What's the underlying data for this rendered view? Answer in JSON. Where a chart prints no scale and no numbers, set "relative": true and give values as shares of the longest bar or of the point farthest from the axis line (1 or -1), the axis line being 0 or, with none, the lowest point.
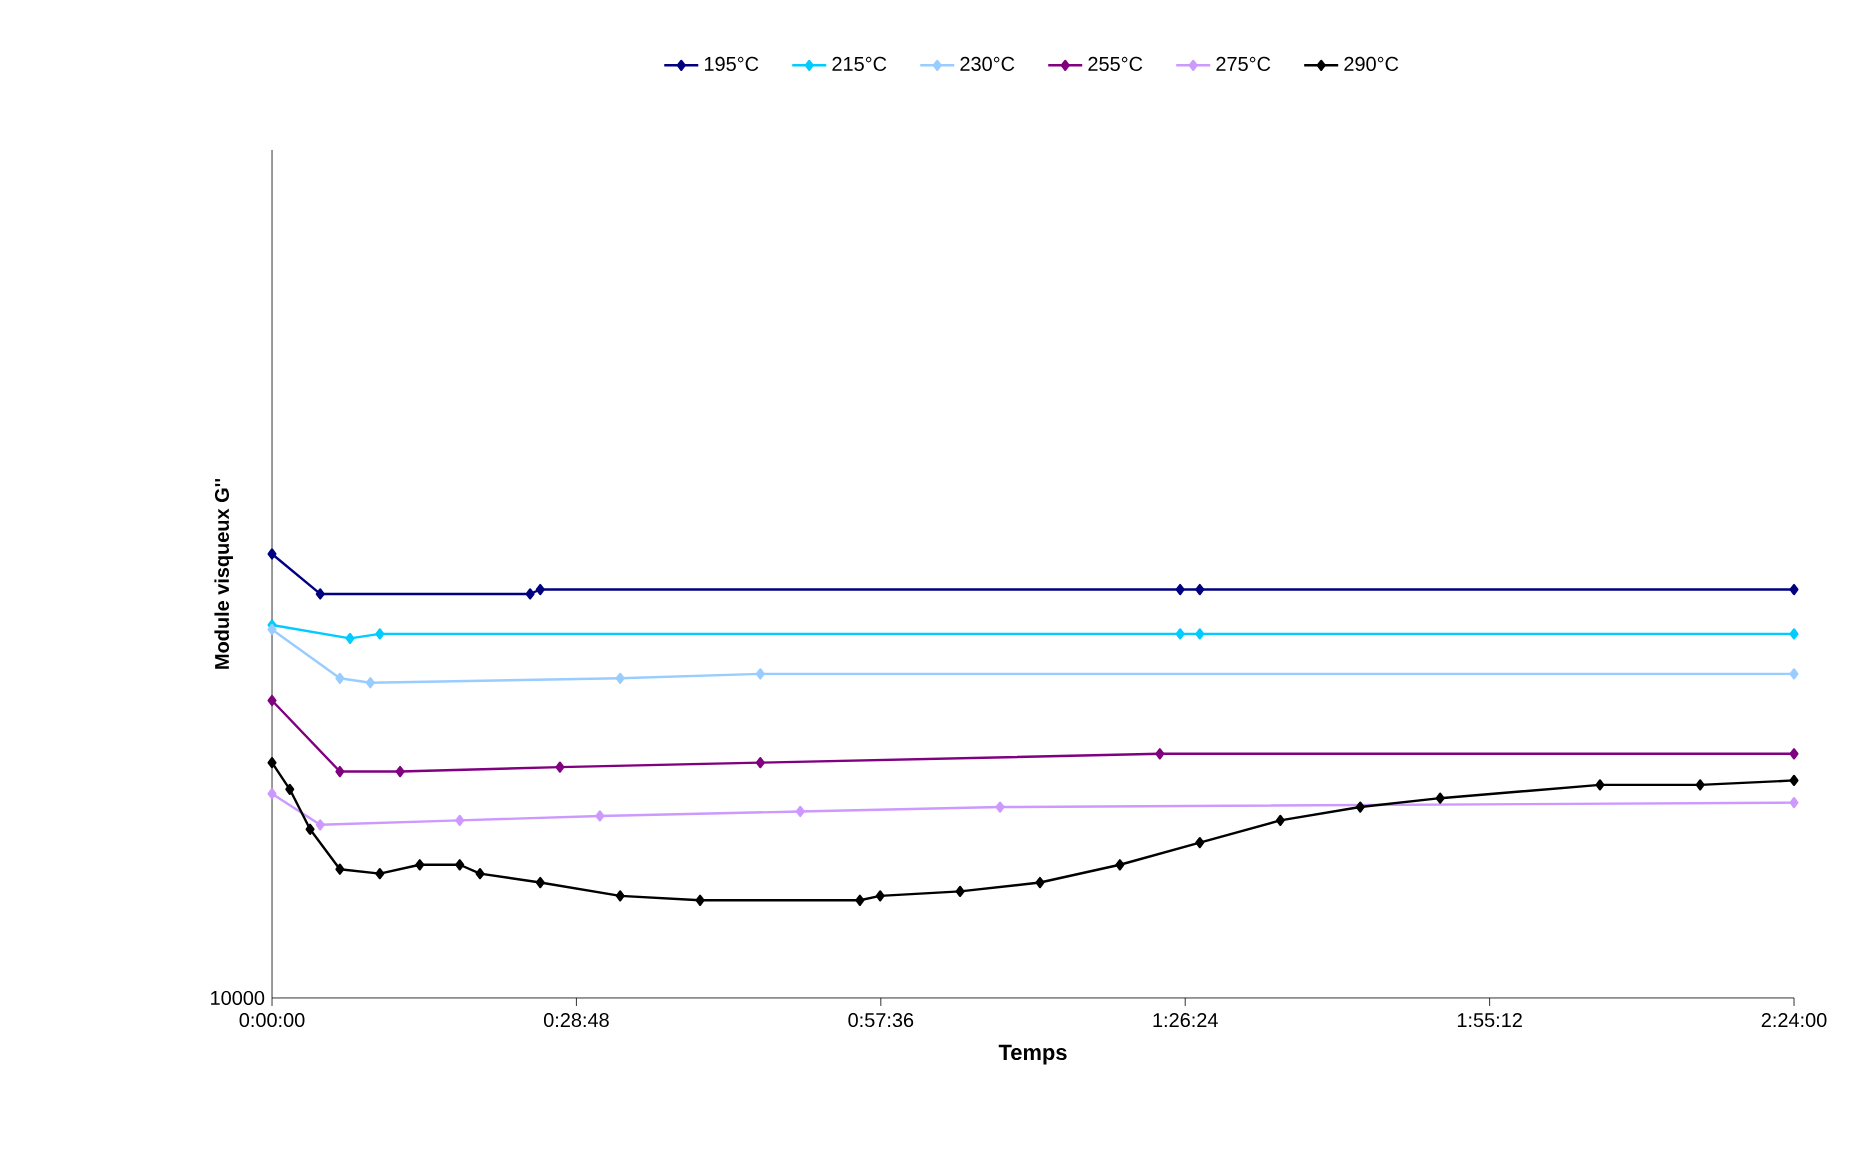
{
  "chart_data": {
    "type": "line",
    "relative": true,
    "xlabel": "Temps",
    "ylabel": "Module visqueux G''",
    "annotations": [
      "10000"
    ],
    "xlim": [
      0,
      2.4
    ],
    "xticks": [
      {
        "value": 0,
        "label": "0:00:00"
      },
      {
        "value": 0.48,
        "label": "0:28:48"
      },
      {
        "value": 0.96,
        "label": "0:57:36"
      },
      {
        "value": 1.44,
        "label": "1:26:24"
      },
      {
        "value": 1.92,
        "label": "1:55:12"
      },
      {
        "value": 2.4,
        "label": "2:24:00"
      }
    ],
    "legend": "top",
    "marker": "diamond",
    "grid": false,
    "series": [
      {
        "name": "195°C",
        "color": "#000080",
        "x": [
          0,
          0.076,
          0.407,
          0.423,
          1.432,
          1.463,
          2.4
        ],
        "values": [
          1.0,
          0.91,
          0.91,
          0.92,
          0.92,
          0.92,
          0.92
        ]
      },
      {
        "name": "215°C",
        "color": "#00ccff",
        "x": [
          0,
          0.123,
          0.17,
          1.432,
          1.463,
          2.4
        ],
        "values": [
          0.84,
          0.81,
          0.82,
          0.82,
          0.82,
          0.82
        ]
      },
      {
        "name": "230°C",
        "color": "#99ccff",
        "x": [
          0,
          0.107,
          0.155,
          0.549,
          0.77,
          2.4
        ],
        "values": [
          0.83,
          0.72,
          0.71,
          0.72,
          0.73,
          0.73
        ]
      },
      {
        "name": "255°C",
        "color": "#800080",
        "x": [
          0,
          0.107,
          0.202,
          0.454,
          0.77,
          1.4,
          2.4
        ],
        "values": [
          0.67,
          0.51,
          0.51,
          0.52,
          0.53,
          0.55,
          0.55
        ]
      },
      {
        "name": "275°C",
        "color": "#cc99ff",
        "x": [
          0,
          0.076,
          0.296,
          0.517,
          0.833,
          1.148,
          2.4
        ],
        "values": [
          0.46,
          0.39,
          0.4,
          0.41,
          0.42,
          0.43,
          0.44
        ]
      },
      {
        "name": "290°C",
        "color": "#000000",
        "x": [
          0,
          0.028,
          0.06,
          0.107,
          0.17,
          0.233,
          0.296,
          0.328,
          0.423,
          0.549,
          0.675,
          0.927,
          0.959,
          1.085,
          1.211,
          1.337,
          1.463,
          1.59,
          1.716,
          1.842,
          2.094,
          2.252,
          2.4
        ],
        "values": [
          0.53,
          0.47,
          0.38,
          0.29,
          0.28,
          0.3,
          0.3,
          0.28,
          0.26,
          0.23,
          0.22,
          0.22,
          0.23,
          0.24,
          0.26,
          0.3,
          0.35,
          0.4,
          0.43,
          0.45,
          0.48,
          0.48,
          0.49
        ]
      }
    ]
  }
}
